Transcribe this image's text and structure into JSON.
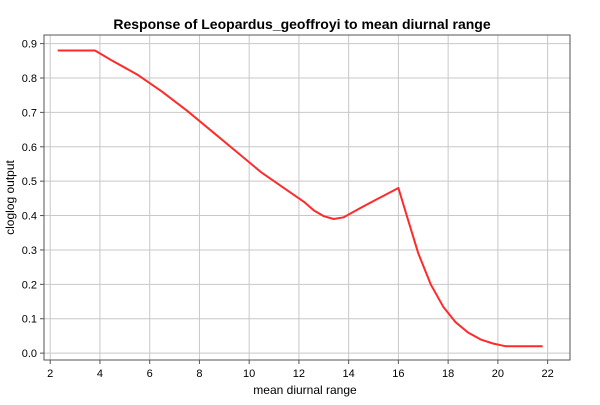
{
  "chart_data": {
    "type": "line",
    "title": "Response of Leopardus_geoffroyi to mean diurnal range",
    "xlabel": "mean diurnal range",
    "ylabel": "cloglog output",
    "xlim": [
      1.75,
      22.9
    ],
    "ylim": [
      -0.02,
      0.925
    ],
    "x_ticks": [
      2,
      4,
      6,
      8,
      10,
      12,
      14,
      16,
      18,
      20,
      22
    ],
    "y_ticks": [
      0.0,
      0.1,
      0.2,
      0.3,
      0.4,
      0.5,
      0.6,
      0.7,
      0.8,
      0.9
    ],
    "x_tick_labels": [
      "2",
      "4",
      "6",
      "8",
      "10",
      "12",
      "14",
      "16",
      "18",
      "20",
      "22"
    ],
    "y_tick_labels": [
      "0.0",
      "0.1",
      "0.2",
      "0.3",
      "0.4",
      "0.5",
      "0.6",
      "0.7",
      "0.8",
      "0.9"
    ],
    "grid": true,
    "series": [
      {
        "color": "#ff2a2a",
        "x": [
          2.3,
          3.8,
          4.5,
          5.5,
          6.5,
          7.5,
          8.5,
          9.5,
          10.5,
          11.5,
          12.2,
          12.6,
          13.0,
          13.4,
          13.8,
          14.5,
          15.2,
          16.0,
          16.4,
          16.8,
          17.3,
          17.8,
          18.3,
          18.8,
          19.3,
          19.8,
          20.3,
          21.0,
          21.8
        ],
        "y": [
          0.88,
          0.88,
          0.85,
          0.81,
          0.76,
          0.705,
          0.645,
          0.585,
          0.525,
          0.475,
          0.44,
          0.415,
          0.398,
          0.39,
          0.395,
          0.423,
          0.45,
          0.48,
          0.385,
          0.29,
          0.2,
          0.135,
          0.09,
          0.06,
          0.04,
          0.028,
          0.02,
          0.02,
          0.02
        ]
      }
    ]
  }
}
